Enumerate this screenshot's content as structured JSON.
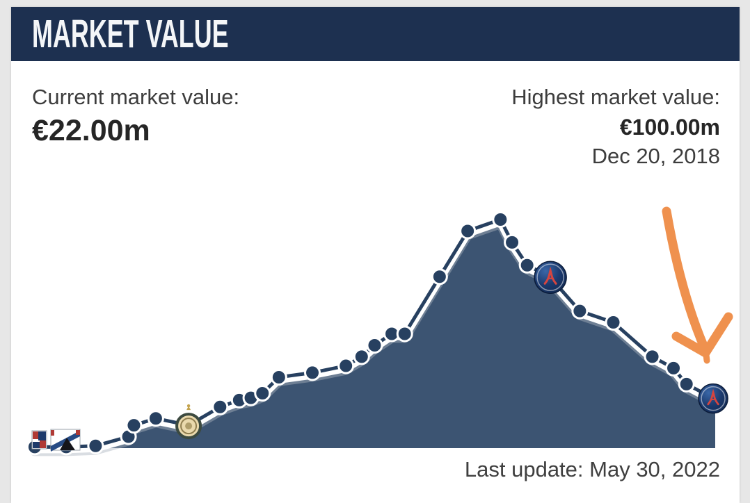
{
  "header": {
    "title": "MARKET VALUE"
  },
  "summary": {
    "current_label": "Current market value:",
    "current_value": "€22.00m",
    "highest_label": "Highest market value:",
    "highest_value": "€100.00m",
    "highest_date": "Dec 20, 2018"
  },
  "footer": {
    "last_update": "Last update: May 30, 2022"
  },
  "colors": {
    "page_bg": "#e7e7e7",
    "card_bg": "#ffffff",
    "header_bg": "#1d3050",
    "header_text": "#f4f6f8",
    "area_fill": "#3c5472",
    "line": "#274060",
    "line_halo": "#ffffff",
    "line_shadow": "#aab3bf",
    "marker_fill": "#274060",
    "marker_stroke": "#ffffff",
    "arrow": "#ef914e",
    "text_dark": "#262626",
    "text_gray": "#3d3d3d"
  },
  "chart_data": {
    "type": "area",
    "title": "Player market value development over time",
    "unit": "million EUR",
    "ylim": [
      0,
      100
    ],
    "xlabel": "time (no axis tick labels shown)",
    "ylabel": "market value (€m, axis not labeled)",
    "grid": false,
    "legend": false,
    "values_eur_m": [
      0.5,
      0.5,
      1,
      5,
      10,
      13,
      10,
      18,
      21,
      22,
      24,
      31,
      33,
      36,
      40,
      45,
      50,
      50,
      75,
      95,
      100,
      90,
      80,
      75,
      60,
      55,
      40,
      35,
      28,
      22
    ],
    "points": [
      {
        "f": 0.005,
        "v": 0.5
      },
      {
        "f": 0.051,
        "v": 0.5
      },
      {
        "f": 0.094,
        "v": 1
      },
      {
        "f": 0.142,
        "v": 5
      },
      {
        "f": 0.15,
        "v": 10
      },
      {
        "f": 0.182,
        "v": 13
      },
      {
        "f": 0.23,
        "v": 10,
        "m": "inter"
      },
      {
        "f": 0.276,
        "v": 18
      },
      {
        "f": 0.304,
        "v": 21
      },
      {
        "f": 0.321,
        "v": 22
      },
      {
        "f": 0.338,
        "v": 24
      },
      {
        "f": 0.362,
        "v": 31
      },
      {
        "f": 0.411,
        "v": 33
      },
      {
        "f": 0.46,
        "v": 36
      },
      {
        "f": 0.483,
        "v": 40
      },
      {
        "f": 0.502,
        "v": 45
      },
      {
        "f": 0.527,
        "v": 50
      },
      {
        "f": 0.546,
        "v": 50
      },
      {
        "f": 0.597,
        "v": 75
      },
      {
        "f": 0.638,
        "v": 95
      },
      {
        "f": 0.686,
        "v": 100
      },
      {
        "f": 0.703,
        "v": 90
      },
      {
        "f": 0.725,
        "v": 80
      },
      {
        "f": 0.758,
        "v": 75,
        "m": "psg"
      },
      {
        "f": 0.802,
        "v": 60
      },
      {
        "f": 0.851,
        "v": 55
      },
      {
        "f": 0.908,
        "v": 40
      },
      {
        "f": 0.939,
        "v": 35
      },
      {
        "f": 0.958,
        "v": 28
      },
      {
        "f": 0.996,
        "v": 22,
        "m": "psg"
      }
    ],
    "peak": {
      "value": 100,
      "date": "Dec 20, 2018"
    },
    "last": {
      "value": 22,
      "date": "May 30, 2022"
    },
    "club_markers": [
      {
        "name": "inter-badge",
        "at_value": 10
      },
      {
        "name": "psg-badge",
        "at_value": 75
      },
      {
        "name": "psg-badge",
        "at_value": 22
      }
    ],
    "start_logos": [
      {
        "name": "club-crest-1"
      },
      {
        "name": "club-crest-2"
      }
    ],
    "annotations": [
      {
        "type": "hand-drawn-arrow",
        "color": "#ef914e",
        "points_to": "last market value point (€22.00m)"
      }
    ]
  }
}
